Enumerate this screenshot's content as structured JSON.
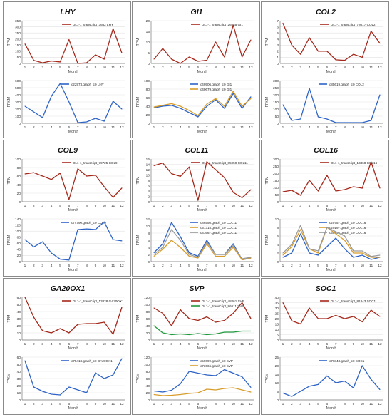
{
  "colors": {
    "red": "#a5281b",
    "green": "#1f9a3c",
    "blue": "#2e63c6",
    "orange": "#d89c2a",
    "gray": "#9a9a9a",
    "grid": "#e2e2e2"
  },
  "chart_data": [
    {
      "gene": "LHY",
      "top": {
        "type": "line",
        "ylabel": "TPM",
        "xlabel": "Month",
        "ylim": [
          0,
          350
        ],
        "ystep": 50,
        "categories": [
          1,
          2,
          3,
          4,
          5,
          6,
          7,
          8,
          9,
          10,
          11,
          12
        ],
        "series": [
          {
            "name": "DL1-1_transcript_3662 LHY",
            "color": "red",
            "values": [
              160,
              25,
              5,
              20,
              12,
              195,
              0,
              5,
              70,
              35,
              285,
              85
            ]
          }
        ]
      },
      "bottom": {
        "type": "line",
        "ylabel": "FPKM",
        "xlabel": "Month",
        "ylim": [
          0,
          600
        ],
        "ystep": 100,
        "categories": [
          1,
          2,
          3,
          4,
          5,
          6,
          7,
          8,
          9,
          10,
          11,
          12
        ],
        "series": [
          {
            "name": "c22973.graph_c0 LHY",
            "color": "blue",
            "values": [
              240,
              160,
              80,
              380,
              560,
              300,
              10,
              20,
              70,
              30,
              310,
              200
            ]
          }
        ]
      }
    },
    {
      "gene": "GI1",
      "top": {
        "type": "line",
        "ylabel": "TPM",
        "xlabel": "Month",
        "ylim": [
          0,
          20
        ],
        "ystep": 5,
        "categories": [
          1,
          2,
          3,
          4,
          5,
          6,
          7,
          8,
          9,
          10,
          11,
          12
        ],
        "series": [
          {
            "name": "DL1-1_transcript_26535 GI1",
            "color": "red",
            "values": [
              2,
              7,
              2,
              0,
              3,
              1,
              1.5,
              10,
              3,
              18,
              3,
              11
            ]
          }
        ]
      },
      "bottom": {
        "type": "line",
        "ylabel": "FPKM",
        "xlabel": "Month",
        "ylim": [
          0,
          100
        ],
        "ystep": 20,
        "categories": [
          1,
          2,
          3,
          4,
          5,
          6,
          7,
          8,
          9,
          10,
          11,
          12
        ],
        "series": [
          {
            "name": "c49506.graph_c0 GI1",
            "color": "blue",
            "values": [
              36,
              40,
              42,
              35,
              25,
              15,
              40,
              55,
              35,
              70,
              35,
              62
            ]
          },
          {
            "name": "c49679.graph_c0 GI1",
            "color": "orange",
            "values": [
              38,
              42,
              46,
              40,
              30,
              18,
              45,
              58,
              40,
              75,
              40,
              58
            ]
          }
        ]
      }
    },
    {
      "gene": "COL2",
      "top": {
        "type": "line",
        "ylabel": "TPM",
        "xlabel": "Month",
        "ylim": [
          0,
          7
        ],
        "ystep": 1,
        "categories": [
          1,
          2,
          3,
          4,
          5,
          6,
          7,
          8,
          9,
          10,
          11,
          12
        ],
        "series": [
          {
            "name": "DL1-1_transcript_78017 COL2",
            "color": "red",
            "values": [
              6.6,
              3,
              1.5,
              4.2,
              2,
              2,
              0.6,
              0.5,
              1.5,
              1,
              5.3,
              3.3
            ]
          }
        ]
      },
      "bottom": {
        "type": "line",
        "ylabel": "FPKM",
        "xlabel": "Month",
        "ylim": [
          0,
          300
        ],
        "ystep": 50,
        "categories": [
          1,
          2,
          3,
          4,
          5,
          6,
          7,
          8,
          9,
          10,
          11,
          12
        ],
        "series": [
          {
            "name": "c85619.graph_c0 COL2",
            "color": "blue",
            "values": [
              130,
              20,
              30,
              245,
              45,
              30,
              5,
              5,
              5,
              5,
              20,
              200
            ]
          }
        ]
      }
    },
    {
      "gene": "COL9",
      "top": {
        "type": "line",
        "ylabel": "TPM",
        "xlabel": "Month",
        "ylim": [
          0,
          100
        ],
        "ystep": 20,
        "categories": [
          1,
          2,
          3,
          4,
          5,
          6,
          7,
          8,
          9,
          10,
          11,
          12
        ],
        "series": [
          {
            "name": "DL1-1_transcript_79725 COL9",
            "color": "red",
            "values": [
              65,
              68,
              60,
              52,
              67,
              5,
              77,
              60,
              62,
              35,
              10,
              32
            ]
          }
        ]
      },
      "bottom": {
        "type": "line",
        "ylabel": "FPKM",
        "xlabel": "Month",
        "ylim": [
          0,
          140
        ],
        "ystep": 20,
        "categories": [
          1,
          2,
          3,
          4,
          5,
          6,
          7,
          8,
          9,
          10,
          11,
          12
        ],
        "series": [
          {
            "name": "c74790.graph_c0 COL9",
            "color": "blue",
            "values": [
              72,
              48,
              65,
              28,
              8,
              5,
              105,
              107,
              105,
              130,
              72,
              68
            ]
          }
        ]
      }
    },
    {
      "gene": "COL11",
      "top": {
        "type": "line",
        "ylabel": "TPM",
        "xlabel": "Month",
        "ylim": [
          0,
          16
        ],
        "ystep": 2,
        "categories": [
          1,
          2,
          3,
          4,
          5,
          6,
          7,
          8,
          9,
          10,
          11,
          12
        ],
        "series": [
          {
            "name": "DL1-1_transcript_85959 COL11",
            "color": "red",
            "values": [
              13.5,
              14.5,
              10.5,
              9.5,
              13,
              0.5,
              15,
              12,
              9,
              3.5,
              1.5,
              4.5
            ]
          }
        ]
      },
      "bottom": {
        "type": "line",
        "ylabel": "FPKM",
        "xlabel": "Month",
        "ylim": [
          0,
          12
        ],
        "ystep": 2,
        "categories": [
          1,
          2,
          3,
          4,
          5,
          6,
          7,
          8,
          9,
          10,
          11,
          12
        ],
        "series": [
          {
            "name": "c86550.graph_c0 COL11",
            "color": "blue",
            "values": [
              2.5,
              5,
              11,
              7,
              2.5,
              1.5,
              6,
              2,
              2,
              5,
              0.5,
              1
            ]
          },
          {
            "name": "c57315.graph_c0 COL11",
            "color": "orange",
            "values": [
              1.5,
              3.5,
              6,
              4,
              1.5,
              1,
              5,
              1.5,
              1.5,
              4,
              0.5,
              1
            ]
          },
          {
            "name": "c41667.graph_c0 COL11",
            "color": "gray",
            "values": [
              2,
              4,
              9,
              6,
              2,
              1.2,
              5.5,
              2,
              2,
              4.5,
              0.8,
              1.2
            ]
          }
        ]
      }
    },
    {
      "gene": "COL16",
      "top": {
        "type": "line",
        "ylabel": "TPM",
        "xlabel": "Month",
        "ylim": [
          0,
          300
        ],
        "ystep": 50,
        "categories": [
          1,
          2,
          3,
          4,
          5,
          6,
          7,
          8,
          9,
          10,
          11,
          12
        ],
        "series": [
          {
            "name": "DL1-1_transcript_13368 COL16",
            "color": "red",
            "values": [
              70,
              80,
              45,
              150,
              75,
              185,
              75,
              85,
              105,
              95,
              280,
              95
            ]
          }
        ]
      },
      "bottom": {
        "type": "line",
        "ylabel": "FPKM",
        "xlabel": "Month",
        "ylim": [
          0,
          10
        ],
        "ystep": 2,
        "categories": [
          1,
          2,
          3,
          4,
          5,
          6,
          7,
          8,
          9,
          10,
          11,
          12
        ],
        "series": [
          {
            "name": "c20757.graph_c0 COL16",
            "color": "blue",
            "values": [
              1,
              2,
              6.5,
              2,
              1.5,
              3.5,
              5.5,
              3,
              1,
              1.5,
              0.5,
              1
            ]
          },
          {
            "name": "c20197.graph_c0 COL16",
            "color": "orange",
            "values": [
              1.5,
              3.5,
              7.5,
              3,
              2,
              8,
              6.5,
              5,
              2,
              2,
              1,
              1
            ]
          },
          {
            "name": "c50854.graph_c0 COL16",
            "color": "gray",
            "values": [
              2,
              4,
              8.5,
              3,
              2.5,
              8,
              7,
              6,
              2.5,
              2.5,
              1.2,
              1.5
            ]
          }
        ]
      }
    },
    {
      "gene": "GA20OX1",
      "top": {
        "type": "line",
        "ylabel": "TPM",
        "xlabel": "Month",
        "ylim": [
          0,
          60
        ],
        "ystep": 10,
        "categories": [
          1,
          2,
          3,
          4,
          5,
          6,
          7,
          8,
          9,
          10,
          11,
          12
        ],
        "series": [
          {
            "name": "DL1-1_transcript_13828 GA20OX1",
            "color": "red",
            "values": [
              60,
              32,
              13,
              10,
              16,
              10,
              22,
              23,
              23,
              25,
              8,
              46
            ]
          }
        ]
      },
      "bottom": {
        "type": "line",
        "ylabel": "FPKM",
        "xlabel": "Month",
        "ylim": [
          0,
          60
        ],
        "ystep": 10,
        "categories": [
          1,
          2,
          3,
          4,
          5,
          6,
          7,
          8,
          9,
          10,
          11,
          12
        ],
        "series": [
          {
            "name": "c75418.graph_c0 GA20OX1",
            "color": "blue",
            "values": [
              55,
              18,
              12,
              8,
              7,
              18,
              14,
              10,
              38,
              30,
              35,
              58
            ]
          }
        ]
      }
    },
    {
      "gene": "SVP",
      "top": {
        "type": "line",
        "ylabel": "TPM",
        "xlabel": "Month",
        "ylim": [
          0,
          120
        ],
        "ystep": 20,
        "categories": [
          1,
          2,
          3,
          4,
          5,
          6,
          7,
          8,
          9,
          10,
          11,
          12
        ],
        "series": [
          {
            "name": "DL1-1_transcript_48261 SVP",
            "color": "red",
            "values": [
              90,
              75,
              40,
              85,
              60,
              55,
              65,
              50,
              55,
              75,
              105,
              60
            ]
          },
          {
            "name": "DL1-1_transcript_86611 SVP",
            "color": "green",
            "values": [
              40,
              20,
              15,
              17,
              15,
              18,
              15,
              17,
              22,
              22,
              25,
              25
            ]
          }
        ]
      },
      "bottom": {
        "type": "line",
        "ylabel": "FPKM",
        "xlabel": "Month",
        "ylim": [
          0,
          120
        ],
        "ystep": 20,
        "categories": [
          1,
          2,
          3,
          4,
          5,
          6,
          7,
          8,
          9,
          10,
          11,
          12
        ],
        "series": [
          {
            "name": "c59099.graph_c0 SVP",
            "color": "blue",
            "values": [
              25,
              22,
              27,
              45,
              80,
              75,
              70,
              68,
              85,
              75,
              65,
              35
            ]
          },
          {
            "name": "c73666.graph_c0 SVP",
            "color": "orange",
            "values": [
              15,
              12,
              13,
              15,
              18,
              20,
              30,
              28,
              32,
              34,
              28,
              22
            ]
          }
        ]
      }
    },
    {
      "gene": "SOC1",
      "top": {
        "type": "line",
        "ylabel": "TPM",
        "xlabel": "Month",
        "ylim": [
          0,
          40
        ],
        "ystep": 5,
        "categories": [
          1,
          2,
          3,
          4,
          5,
          6,
          7,
          8,
          9,
          10,
          11,
          12
        ],
        "series": [
          {
            "name": "DL1-1_transcript_81843 SOC1",
            "color": "red",
            "values": [
              35,
              18,
              15,
              30,
              20,
              20,
              23,
              20,
              22,
              17,
              28,
              22
            ]
          }
        ]
      },
      "bottom": {
        "type": "line",
        "ylabel": "FPKM",
        "xlabel": "Month",
        "ylim": [
          0,
          25
        ],
        "ystep": 5,
        "categories": [
          1,
          2,
          3,
          4,
          5,
          6,
          7,
          8,
          9,
          10,
          11,
          12
        ],
        "series": [
          {
            "name": "c76843.graph_c0 SOC1",
            "color": "blue",
            "values": [
              4,
              2,
              5,
              8,
              9,
              14,
              10,
              11,
              7,
              20,
              12,
              6
            ]
          }
        ]
      }
    }
  ]
}
